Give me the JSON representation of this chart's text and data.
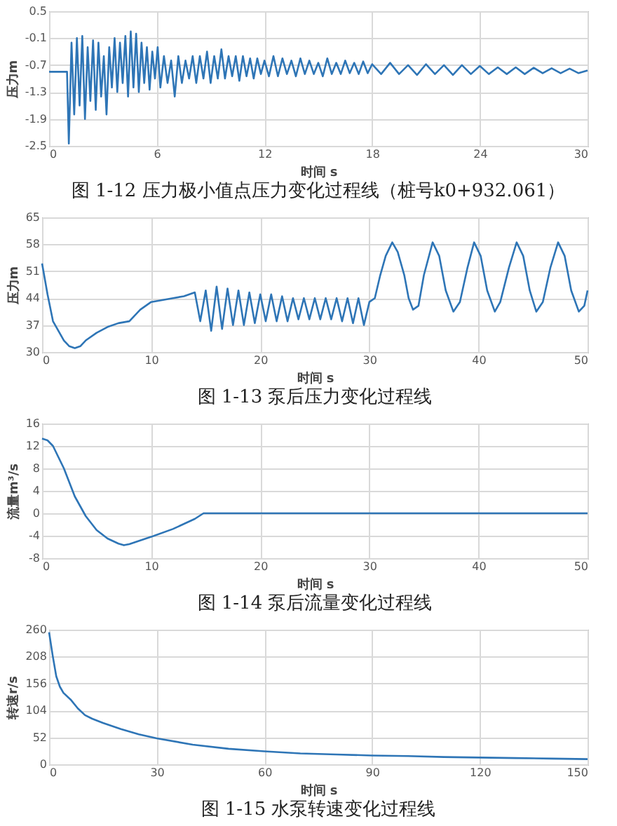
{
  "chart_data": [
    {
      "type": "line",
      "title": "图 1-12 压力极小值点压力变化过程线（桩号k0+932.061）",
      "xlabel": "时间 s",
      "ylabel": "压力m",
      "xlim": [
        0,
        30
      ],
      "xticks": [
        0,
        6,
        12,
        18,
        24,
        30
      ],
      "ylim": [
        -2.5,
        0.5
      ],
      "yticks": [
        -2.5,
        -1.9,
        -1.3,
        -0.7,
        -0.1,
        0.5
      ],
      "grid": true,
      "series": [
        {
          "color": "#2e75b6",
          "x": [
            0,
            1.0,
            1.1,
            1.25,
            1.4,
            1.55,
            1.7,
            1.85,
            2.0,
            2.15,
            2.3,
            2.45,
            2.6,
            2.75,
            2.9,
            3.05,
            3.2,
            3.35,
            3.5,
            3.65,
            3.8,
            3.95,
            4.1,
            4.25,
            4.4,
            4.55,
            4.7,
            4.85,
            5.0,
            5.15,
            5.3,
            5.45,
            5.6,
            5.75,
            5.9,
            6.05,
            6.2,
            6.4,
            6.6,
            6.8,
            7.0,
            7.2,
            7.4,
            7.6,
            7.8,
            8.0,
            8.2,
            8.4,
            8.6,
            8.8,
            9.0,
            9.2,
            9.4,
            9.6,
            9.8,
            10.0,
            10.2,
            10.4,
            10.6,
            10.8,
            11.0,
            11.2,
            11.4,
            11.6,
            11.8,
            12.0,
            12.25,
            12.5,
            12.75,
            13.0,
            13.25,
            13.5,
            13.75,
            14.0,
            14.25,
            14.5,
            14.75,
            15.0,
            15.25,
            15.5,
            15.75,
            16.0,
            16.25,
            16.5,
            16.75,
            17.0,
            17.25,
            17.5,
            17.75,
            18.0,
            18.5,
            19.0,
            19.5,
            20.0,
            20.5,
            21.0,
            21.5,
            22.0,
            22.5,
            23.0,
            23.5,
            24.0,
            24.5,
            25.0,
            25.5,
            26.0,
            26.5,
            27.0,
            27.5,
            28.0,
            28.5,
            29.0,
            29.5,
            30.0
          ],
          "values": [
            -0.85,
            -0.85,
            -2.45,
            -0.2,
            -1.8,
            -0.1,
            -1.6,
            -0.05,
            -1.9,
            -0.3,
            -1.5,
            -0.15,
            -1.7,
            -0.2,
            -1.4,
            -0.5,
            -1.8,
            -0.3,
            -1.2,
            -0.1,
            -1.3,
            -0.2,
            -1.1,
            -0.05,
            -1.4,
            0.05,
            -1.2,
            0.0,
            -1.3,
            -0.2,
            -1.1,
            -0.3,
            -1.25,
            -0.4,
            -1.0,
            -0.3,
            -1.2,
            -0.5,
            -1.1,
            -0.6,
            -1.4,
            -0.5,
            -1.1,
            -0.6,
            -1.0,
            -0.5,
            -1.1,
            -0.5,
            -1.0,
            -0.4,
            -1.1,
            -0.5,
            -1.0,
            -0.35,
            -1.0,
            -0.5,
            -0.95,
            -0.5,
            -1.05,
            -0.5,
            -0.95,
            -0.55,
            -1.0,
            -0.55,
            -0.9,
            -0.6,
            -0.95,
            -0.5,
            -0.95,
            -0.55,
            -0.9,
            -0.6,
            -0.95,
            -0.55,
            -0.9,
            -0.6,
            -0.9,
            -0.65,
            -0.95,
            -0.55,
            -0.9,
            -0.65,
            -0.9,
            -0.6,
            -0.88,
            -0.65,
            -0.9,
            -0.62,
            -0.88,
            -0.68,
            -0.9,
            -0.65,
            -0.9,
            -0.7,
            -0.92,
            -0.68,
            -0.9,
            -0.7,
            -0.92,
            -0.7,
            -0.9,
            -0.72,
            -0.9,
            -0.75,
            -0.9,
            -0.75,
            -0.9,
            -0.76,
            -0.88,
            -0.77,
            -0.88,
            -0.78,
            -0.88,
            -0.82
          ]
        }
      ]
    },
    {
      "type": "line",
      "title": "图 1-13 泵后压力变化过程线",
      "xlabel": "时间 s",
      "ylabel": "压力m",
      "xlim": [
        0,
        50
      ],
      "xticks": [
        0,
        10,
        20,
        30,
        40,
        50
      ],
      "ylim": [
        30,
        65
      ],
      "yticks": [
        30,
        37,
        44,
        51,
        58,
        65
      ],
      "grid": true,
      "series": [
        {
          "color": "#2e75b6",
          "x": [
            0,
            0.5,
            1,
            2,
            2.5,
            3,
            3.5,
            4,
            5,
            6,
            7,
            8,
            9,
            10,
            11,
            12,
            13,
            14,
            14.5,
            15,
            15.5,
            16,
            16.5,
            17,
            17.5,
            18,
            18.5,
            19,
            19.5,
            20,
            20.5,
            21,
            21.5,
            22,
            22.5,
            23,
            23.5,
            24,
            24.5,
            25,
            25.5,
            26,
            26.5,
            27,
            27.5,
            28,
            28.5,
            29,
            29.5,
            30,
            30.5,
            31,
            31.5,
            32.1,
            32.6,
            33.2,
            33.6,
            34.0,
            34.5,
            35,
            35.8,
            36.4,
            37,
            37.7,
            38.3,
            39,
            39.6,
            40.2,
            40.8,
            41.5,
            42,
            42.8,
            43.5,
            44.1,
            44.7,
            45.3,
            45.9,
            46.6,
            47.3,
            47.9,
            48.5,
            49.2,
            49.7,
            50
          ],
          "values": [
            53,
            45,
            38,
            33,
            31.5,
            31,
            31.5,
            33,
            35,
            36.5,
            37.5,
            38,
            41,
            43,
            43.5,
            44,
            44.5,
            45.5,
            38,
            46,
            35.5,
            47,
            36,
            46.5,
            37,
            46,
            37,
            45.5,
            37.5,
            45,
            38,
            45,
            38,
            44.5,
            38,
            44,
            38.5,
            44,
            38.5,
            44,
            38.5,
            44,
            38.5,
            44,
            38,
            44,
            37.5,
            44,
            37,
            43,
            44,
            50,
            55,
            58.5,
            56,
            50,
            44,
            41,
            42,
            50,
            58.5,
            55,
            46,
            40.5,
            43,
            52,
            58.5,
            55,
            46,
            40.5,
            43,
            52,
            58.5,
            55,
            46,
            40.5,
            43,
            52,
            58.5,
            55,
            46,
            40.5,
            42,
            46
          ]
        }
      ]
    },
    {
      "type": "line",
      "title": "图 1-14 泵后流量变化过程线",
      "xlabel": "时间 s",
      "ylabel": "流量m³/s",
      "xlim": [
        0,
        50
      ],
      "xticks": [
        0,
        10,
        20,
        30,
        40,
        50
      ],
      "ylim": [
        -8,
        16
      ],
      "yticks": [
        -8,
        -4,
        0,
        4,
        8,
        12,
        16
      ],
      "grid": true,
      "series": [
        {
          "color": "#2e75b6",
          "x": [
            0,
            0.5,
            1,
            2,
            3,
            4,
            5,
            6,
            7,
            7.5,
            8,
            10,
            12,
            14,
            14.8,
            15,
            50
          ],
          "values": [
            13.3,
            13,
            12,
            8,
            3,
            -0.5,
            -3,
            -4.5,
            -5.4,
            -5.7,
            -5.5,
            -4.2,
            -2.8,
            -1,
            0,
            0,
            0
          ]
        }
      ]
    },
    {
      "type": "line",
      "title": "图 1-15 水泵转速变化过程线",
      "xlabel": "时间 s",
      "ylabel": "转速r/s",
      "xlim": [
        0,
        150
      ],
      "xticks": [
        0,
        30,
        60,
        90,
        120,
        150
      ],
      "ylim": [
        0,
        260
      ],
      "yticks": [
        0,
        52,
        104,
        156,
        208,
        260
      ],
      "grid": true,
      "series": [
        {
          "color": "#2e75b6",
          "x": [
            0,
            1,
            2,
            3,
            4,
            6,
            8,
            10,
            12,
            15,
            20,
            25,
            30,
            40,
            50,
            60,
            70,
            80,
            90,
            100,
            110,
            120,
            130,
            140,
            150
          ],
          "values": [
            255,
            210,
            170,
            150,
            138,
            125,
            108,
            95,
            88,
            80,
            68,
            58,
            50,
            38,
            30,
            25,
            21,
            19,
            17,
            16,
            14,
            13,
            12,
            11,
            10
          ]
        }
      ]
    }
  ]
}
